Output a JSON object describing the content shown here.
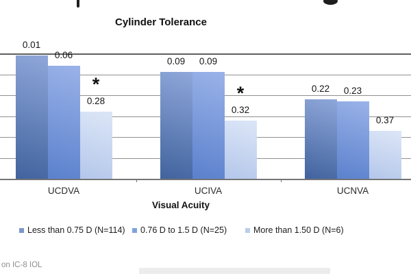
{
  "page": {
    "footnote": "on IC-8 IOL"
  },
  "chart_data": {
    "type": "bar",
    "title": "Cylinder Tolerance",
    "xlabel": "Visual Acuity",
    "ylabel": "",
    "categories": [
      "UCDVA",
      "UCIVA",
      "UCNVA"
    ],
    "series": [
      {
        "name": "Less than 0.75 D (N=114)",
        "values": [
          0.01,
          0.09,
          0.22
        ],
        "legend_color": "#7b97cb",
        "bar_gradient_top": "#8fa7da",
        "bar_gradient_bottom": "#41639e"
      },
      {
        "name": "0.76 D to 1.5 D (N=25)",
        "values": [
          0.06,
          0.09,
          0.23
        ],
        "legend_color": "#7ea3e0",
        "bar_gradient_top": "#9ab2e8",
        "bar_gradient_bottom": "#5b81cd"
      },
      {
        "name": "More than 1.50 D (N=6)",
        "values": [
          0.28,
          0.32,
          0.37
        ],
        "legend_color": "#b9cdec",
        "bar_gradient_top": "#dce6f7",
        "bar_gradient_bottom": "#b4c7ea"
      }
    ],
    "annotations": [
      {
        "category_index": 0,
        "series_index": 2,
        "symbol": "*"
      },
      {
        "category_index": 1,
        "series_index": 2,
        "symbol": "*"
      }
    ],
    "y_axis": {
      "min": 0,
      "max": 0.6,
      "step": 0.1,
      "inverted": true,
      "tick_labels_visible": false
    },
    "legend_position": "bottom",
    "grid": "horizontal"
  }
}
